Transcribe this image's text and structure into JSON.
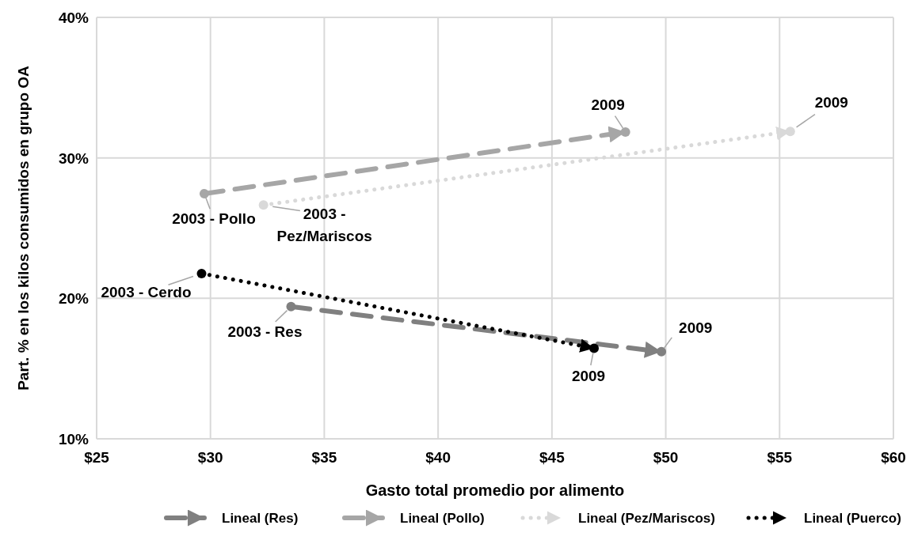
{
  "chart_data": {
    "type": "line",
    "xlabel": "Gasto total promedio por alimento",
    "ylabel": "Part. % en los kilos consumidos en grupo OA",
    "xlim": [
      25,
      60
    ],
    "xticks": [
      {
        "value": 25,
        "label": "$25"
      },
      {
        "value": 30,
        "label": "$30"
      },
      {
        "value": 35,
        "label": "$35"
      },
      {
        "value": 40,
        "label": "$40"
      },
      {
        "value": 45,
        "label": "$45"
      },
      {
        "value": 50,
        "label": "$50"
      },
      {
        "value": 55,
        "label": "$55"
      },
      {
        "value": 60,
        "label": "$60"
      }
    ],
    "ylim": [
      10,
      40
    ],
    "yticks": [
      {
        "value": 10,
        "label": "10%"
      },
      {
        "value": 20,
        "label": "20%"
      },
      {
        "value": 30,
        "label": "30%"
      },
      {
        "value": 40,
        "label": "40%"
      }
    ],
    "grid": true,
    "legend": "bottom",
    "marker": "circle",
    "series": [
      {
        "name": "Lineal (Res)",
        "color": "#808080",
        "line_style": "dashed",
        "x": [
          33.54,
          49.81
        ],
        "values": [
          19.41,
          16.2
        ]
      },
      {
        "name": "Lineal (Pollo)",
        "color": "#a6a6a6",
        "line_style": "dashed",
        "x": [
          29.73,
          48.23
        ],
        "values": [
          27.45,
          31.84
        ]
      },
      {
        "name": "Lineal (Pez/Mariscos)",
        "color": "#d9d9d9",
        "line_style": "dotted",
        "x": [
          32.33,
          55.47
        ],
        "values": [
          26.64,
          31.88
        ]
      },
      {
        "name": "Lineal (Puerco)",
        "color": "#000000",
        "line_style": "dotted",
        "x": [
          29.61,
          46.85
        ],
        "values": [
          21.77,
          16.45
        ]
      }
    ],
    "annotations": [
      {
        "text": "2003 - Pollo",
        "x": 29.73,
        "y": 27.45
      },
      {
        "text": "2003 - Pez/Mariscos",
        "x": 32.33,
        "y": 26.64
      },
      {
        "text": "2003 - Cerdo",
        "x": 29.61,
        "y": 21.77
      },
      {
        "text": "2003 - Res",
        "x": 33.54,
        "y": 19.41
      },
      {
        "text": "2009",
        "x": 48.23,
        "y": 31.84
      },
      {
        "text": "2009",
        "x": 55.47,
        "y": 31.88
      },
      {
        "text": "2009",
        "x": 49.81,
        "y": 16.2
      },
      {
        "text": "2009",
        "x": 46.85,
        "y": 16.45
      }
    ]
  }
}
